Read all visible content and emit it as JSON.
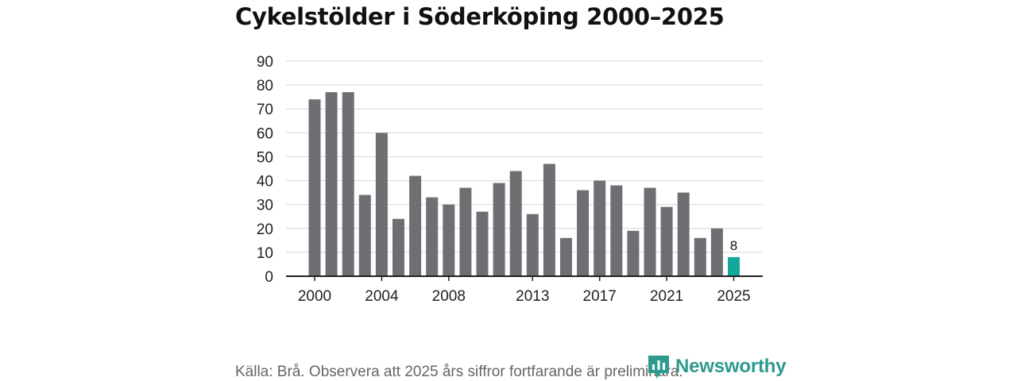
{
  "chart_data": {
    "type": "bar",
    "title": "Cykelstölder i Söderköping 2000–2025",
    "xlabel": "",
    "ylabel": "",
    "ylim": [
      0,
      90
    ],
    "yticks": [
      0,
      10,
      20,
      30,
      40,
      50,
      60,
      70,
      80,
      90
    ],
    "xtick_labels": [
      "2000",
      "2004",
      "2008",
      "2013",
      "2017",
      "2021",
      "2025"
    ],
    "grid": true,
    "categories": [
      "2000",
      "2001",
      "2002",
      "2003",
      "2004",
      "2005",
      "2006",
      "2007",
      "2008",
      "2009",
      "2010",
      "2011",
      "2012",
      "2013",
      "2014",
      "2015",
      "2016",
      "2017",
      "2018",
      "2019",
      "2020",
      "2021",
      "2022",
      "2023",
      "2024",
      "2025"
    ],
    "values": [
      74,
      77,
      77,
      34,
      60,
      24,
      42,
      33,
      30,
      37,
      27,
      39,
      44,
      26,
      47,
      16,
      36,
      40,
      38,
      19,
      37,
      29,
      35,
      16,
      20,
      8
    ],
    "highlight": {
      "category": "2025",
      "label": "8"
    },
    "colors": {
      "bar": "#6f6e73",
      "highlight": "#14a89b",
      "grid": "#dddddd",
      "axis": "#222222"
    }
  },
  "source": "Källa: Brå. Observera att 2025 års siffror fortfarande är preliminära.",
  "logo": {
    "text": "Newsworthy",
    "icon": "newsworthy-logo-icon",
    "color": "#2e9a8f"
  }
}
